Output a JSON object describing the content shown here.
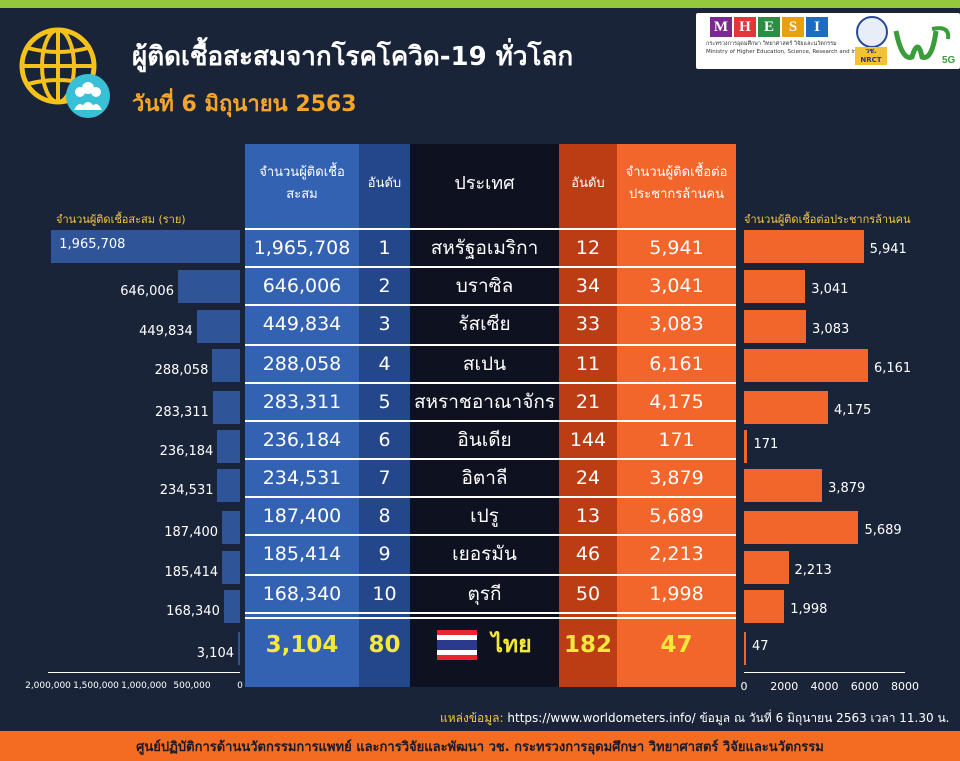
{
  "header": {
    "title": "ผู้ติดเชื้อสะสมจากโรคโควิด-19 ทั่วโลก",
    "subtitle": "วันที่ 6 มิถุนายน 2563"
  },
  "logos": {
    "mhesi_letters": [
      "M",
      "H",
      "E",
      "S",
      "I"
    ],
    "mhesi_colors": [
      "#7a2a8e",
      "#e2353c",
      "#2f8c45",
      "#e7a10f",
      "#1e6cc0"
    ],
    "mhesi_caption_th": "กระทรวงการอุดมศึกษา วิทยาศาสตร์ วิจัยและนวัตกรรม",
    "mhesi_caption_en": "Ministry of Higher Education, Science, Research and Innovation",
    "nrct": "วช. NRCT",
    "w5g": "5G"
  },
  "table": {
    "headers": {
      "cases": "จำนวนผู้ติดเชื้อสะสม",
      "rank": "อันดับ",
      "country": "ประเทศ",
      "rank_per_million": "อันดับ",
      "per_million": "จำนวนผู้ติดเชื้อต่อประชากรล้านคน"
    },
    "rows": [
      {
        "cases": "1,965,708",
        "rank": "1",
        "country": "สหรัฐอเมริกา",
        "rank_pm": "12",
        "per_million": "5,941"
      },
      {
        "cases": "646,006",
        "rank": "2",
        "country": "บราซิล",
        "rank_pm": "34",
        "per_million": "3,041"
      },
      {
        "cases": "449,834",
        "rank": "3",
        "country": "รัสเซีย",
        "rank_pm": "33",
        "per_million": "3,083"
      },
      {
        "cases": "288,058",
        "rank": "4",
        "country": "สเปน",
        "rank_pm": "11",
        "per_million": "6,161"
      },
      {
        "cases": "283,311",
        "rank": "5",
        "country": "สหราชอาณาจักร",
        "rank_pm": "21",
        "per_million": "4,175"
      },
      {
        "cases": "236,184",
        "rank": "6",
        "country": "อินเดีย",
        "rank_pm": "144",
        "per_million": "171"
      },
      {
        "cases": "234,531",
        "rank": "7",
        "country": "อิตาลี",
        "rank_pm": "24",
        "per_million": "3,879"
      },
      {
        "cases": "187,400",
        "rank": "8",
        "country": "เปรู",
        "rank_pm": "13",
        "per_million": "5,689"
      },
      {
        "cases": "185,414",
        "rank": "9",
        "country": "เยอรมัน",
        "rank_pm": "46",
        "per_million": "2,213"
      },
      {
        "cases": "168,340",
        "rank": "10",
        "country": "ตุรกี",
        "rank_pm": "50",
        "per_million": "1,998"
      }
    ],
    "thailand": {
      "cases": "3,104",
      "rank": "80",
      "country": "ไทย",
      "rank_pm": "182",
      "per_million": "47"
    }
  },
  "chart_data": [
    {
      "type": "bar",
      "orientation": "horizontal-reversed",
      "xlabel": "จำนวนผู้ติดเชื้อสะสม (ราย)",
      "xlim": [
        0,
        2000000
      ],
      "ticks": [
        "2,000,000",
        "1,500,000",
        "1,000,000",
        "500,000",
        "0"
      ],
      "categories": [
        "สหรัฐอเมริกา",
        "บราซิล",
        "รัสเซีย",
        "สเปน",
        "สหราชอาณาจักร",
        "อินเดีย",
        "อิตาลี",
        "เปรู",
        "เยอรมัน",
        "ตุรกี",
        "ไทย"
      ],
      "values": [
        1965708,
        646006,
        449834,
        288058,
        283311,
        236184,
        234531,
        187400,
        185414,
        168340,
        3104
      ],
      "labels": [
        "1,965,708",
        "646,006",
        "449,834",
        "288,058",
        "283,311",
        "236,184",
        "234,531",
        "187,400",
        "185,414",
        "168,340",
        "3,104"
      ]
    },
    {
      "type": "bar",
      "orientation": "horizontal",
      "xlabel": "จำนวนผู้ติดเชื้อต่อประชากรล้านคน",
      "xlim": [
        0,
        8000
      ],
      "ticks": [
        "0",
        "2000",
        "4000",
        "6000",
        "8000"
      ],
      "categories": [
        "สหรัฐอเมริกา",
        "บราซิล",
        "รัสเซีย",
        "สเปน",
        "สหราชอาณาจักร",
        "อินเดีย",
        "อิตาลี",
        "เปรู",
        "เยอรมัน",
        "ตุรกี",
        "ไทย"
      ],
      "values": [
        5941,
        3041,
        3083,
        6161,
        4175,
        171,
        3879,
        5689,
        2213,
        1998,
        47
      ],
      "labels": [
        "5,941",
        "3,041",
        "3,083",
        "6,161",
        "4,175",
        "171",
        "3,879",
        "5,689",
        "2,213",
        "1,998",
        "47"
      ]
    }
  ],
  "source": {
    "label": "แหล่งข้อมูล:",
    "text": " https://www.worldometers.info/ ข้อมูล ณ วันที่ 6 มิถุนายน 2563 เวลา 11.30 น."
  },
  "footer": "ศูนย์ปฏิบัติการด้านนวัตกรรมการแพทย์ และการวิจัยและพัฒนา วช.  กระทรวงการอุดมศึกษา วิทยาศาสตร์ วิจัยและนวัตกรรม"
}
